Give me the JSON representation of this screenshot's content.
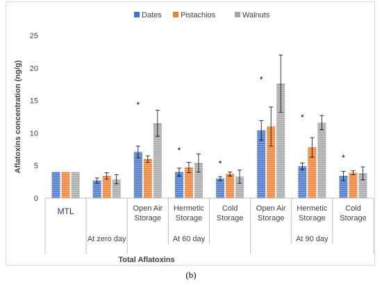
{
  "chart_data": {
    "type": "bar",
    "ylabel": "Aflatoxins concentration (ng/g)",
    "xlabel": "Total Aflatoxins",
    "ylim": [
      0,
      25
    ],
    "yticks": [
      0,
      5,
      10,
      15,
      20,
      25
    ],
    "legend_position": "top",
    "grid": false,
    "categories": [
      "MTL",
      "At zero day",
      "Open Air Storage",
      "Hermetic Storage",
      "Cold Storage",
      "Open Air Storage",
      "Hermetic Storage",
      "Cold Storage"
    ],
    "category_labels": [
      [
        "MTL"
      ],
      [
        "At zero day"
      ],
      [
        "Open Air",
        "Storage"
      ],
      [
        "Hermetic",
        "Storage"
      ],
      [
        "Cold",
        "Storage"
      ],
      [
        "Open Air",
        "Storage"
      ],
      [
        "Hermetic",
        "Storage"
      ],
      [
        "Cold",
        "Storage"
      ]
    ],
    "groups": [
      {
        "label": "At 60 day",
        "start": 2,
        "end": 4
      },
      {
        "label": "At 90 day",
        "start": 5,
        "end": 7
      }
    ],
    "series": [
      {
        "name": "Dates",
        "color": "#4472C4",
        "values": [
          4,
          2.7,
          7.1,
          4.0,
          3.0,
          10.4,
          4.9,
          3.4
        ],
        "errors": [
          0,
          0.4,
          0.9,
          0.6,
          0.3,
          1.5,
          0.5,
          0.7
        ]
      },
      {
        "name": "Pistachios",
        "color": "#ED7D31",
        "values": [
          4,
          3.4,
          6.0,
          4.7,
          3.7,
          11.0,
          7.8,
          3.9
        ],
        "errors": [
          0,
          0.5,
          0.5,
          0.8,
          0.3,
          3.0,
          1.5,
          0.3
        ]
      },
      {
        "name": "Walnuts",
        "color": "#A5A5A5",
        "values": [
          4,
          2.9,
          11.5,
          5.4,
          3.3,
          17.6,
          11.6,
          3.8
        ],
        "errors": [
          0,
          0.7,
          2.0,
          1.4,
          1.0,
          4.4,
          1.1,
          1.0
        ]
      }
    ],
    "annotations": [
      {
        "text": "*",
        "category": 2,
        "value": 14.3
      },
      {
        "text": "*",
        "category": 3,
        "value": 7.3
      },
      {
        "text": "*",
        "category": 4,
        "value": 5.3
      },
      {
        "text": "*",
        "category": 5,
        "value": 18.2
      },
      {
        "text": "*",
        "category": 6,
        "value": 12.4
      },
      {
        "text": "*",
        "category": 7,
        "value": 6.2
      }
    ]
  },
  "caption": "(b)"
}
